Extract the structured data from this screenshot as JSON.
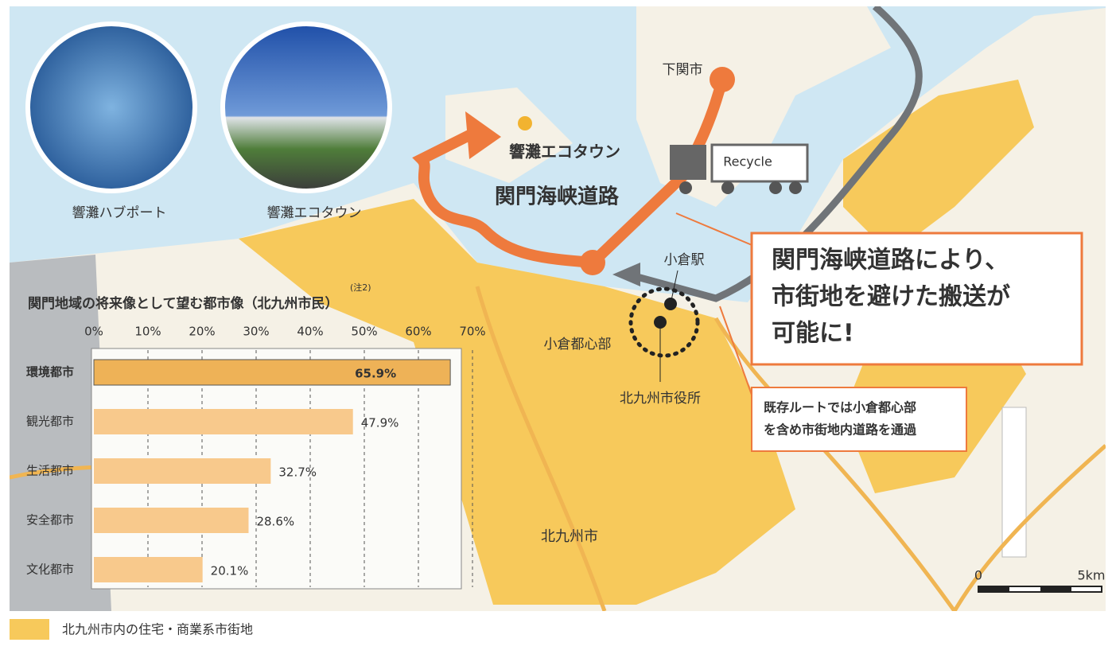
{
  "photos": [
    {
      "caption": "響灘ハブポート"
    },
    {
      "caption": "響灘エコタウン"
    }
  ],
  "map_labels": {
    "shimonoseki": "下関市",
    "ecotown": "響灘エコタウン",
    "road": "関門海峡道路",
    "kokura_station": "小倉駅",
    "kokura_center": "小倉都心部",
    "city_hall": "北九州市役所",
    "kitakyushu": "北九州市",
    "truck": "Recycle"
  },
  "callouts": [
    {
      "lines": [
        "関門海峡道路により、",
        "市街地を避けた搬送が",
        "可能に!"
      ]
    },
    {
      "lines": [
        "既存ルートでは小倉都心部",
        "を含め市街地内道路を通過"
      ]
    }
  ],
  "scale": {
    "start": "0",
    "end": "5km"
  },
  "legend": "北九州市内の住宅・商業系市街地",
  "chart_data": {
    "type": "bar",
    "orientation": "horizontal",
    "title": "関門地域の将来像として望む都市像（北九州市民）",
    "note": "(注2)",
    "categories": [
      "環境都市",
      "観光都市",
      "生活都市",
      "安全都市",
      "文化都市"
    ],
    "values": [
      65.9,
      47.9,
      32.7,
      28.6,
      20.1
    ],
    "value_labels": [
      "65.9%",
      "47.9%",
      "32.7%",
      "28.6%",
      "20.1%"
    ],
    "colors": [
      "#eeb257",
      "#f8c98c",
      "#f8c98c",
      "#f8c98c",
      "#f8c98c"
    ],
    "xlim": [
      0,
      70
    ],
    "xticks": [
      {
        "value": 0,
        "label": "0%"
      },
      {
        "value": 10,
        "label": "10%"
      },
      {
        "value": 20,
        "label": "20%"
      },
      {
        "value": 30,
        "label": "30%"
      },
      {
        "value": 40,
        "label": "40%"
      },
      {
        "value": 50,
        "label": "50%"
      },
      {
        "value": 60,
        "label": "60%"
      },
      {
        "value": 70,
        "label": "70%"
      }
    ],
    "grid": true
  }
}
